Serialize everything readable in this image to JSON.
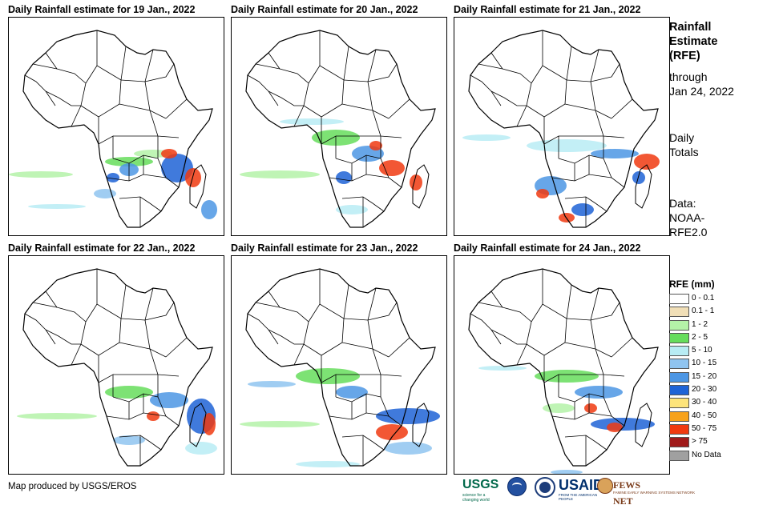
{
  "panels": [
    {
      "title": "Daily Rainfall estimate for 19 Jan., 2022",
      "day": 19
    },
    {
      "title": "Daily Rainfall estimate for 20 Jan., 2022",
      "day": 20
    },
    {
      "title": "Daily Rainfall estimate for 21 Jan., 2022",
      "day": 21
    },
    {
      "title": "Daily Rainfall estimate for 22 Jan., 2022",
      "day": 22
    },
    {
      "title": "Daily Rainfall estimate for 23 Jan., 2022",
      "day": 23
    },
    {
      "title": "Daily Rainfall estimate for 24 Jan., 2022",
      "day": 24
    }
  ],
  "side": {
    "heading": [
      "Rainfall",
      "Estimate",
      "(RFE)"
    ],
    "through": [
      "through",
      "Jan 24, 2022"
    ],
    "totals": [
      "Daily",
      "Totals"
    ],
    "source": [
      "Data:",
      "NOAA-",
      "RFE2.0"
    ]
  },
  "legend": {
    "title": "RFE (mm)",
    "classes": [
      {
        "label": "0 - 0.1",
        "color": "#ffffff"
      },
      {
        "label": "0.1 - 1",
        "color": "#f1dfb7"
      },
      {
        "label": "1 - 2",
        "color": "#b4f2a8"
      },
      {
        "label": "2 - 5",
        "color": "#66dd5c"
      },
      {
        "label": "5 - 10",
        "color": "#b8ecf4"
      },
      {
        "label": "10 - 15",
        "color": "#8fc4f0"
      },
      {
        "label": "15 - 20",
        "color": "#4c96e4"
      },
      {
        "label": "20 - 30",
        "color": "#1e63d6"
      },
      {
        "label": "30 - 40",
        "color": "#fde47a"
      },
      {
        "label": "40 - 50",
        "color": "#f7a21b"
      },
      {
        "label": "50 - 75",
        "color": "#f03a10"
      },
      {
        "label": "> 75",
        "color": "#a01a1a"
      },
      {
        "label": "No Data",
        "color": "#a0a0a0"
      }
    ]
  },
  "credit": "Map produced by USGS/EROS",
  "logos": {
    "usgs": "USGS",
    "usgs_tag": "science for a changing world",
    "usaid": "USAID",
    "usaid_tag": "FROM THE AMERICAN PEOPLE",
    "fews": "FEWS NET",
    "fews_tag": "FAMINE EARLY WARNING SYSTEMS NETWORK"
  }
}
